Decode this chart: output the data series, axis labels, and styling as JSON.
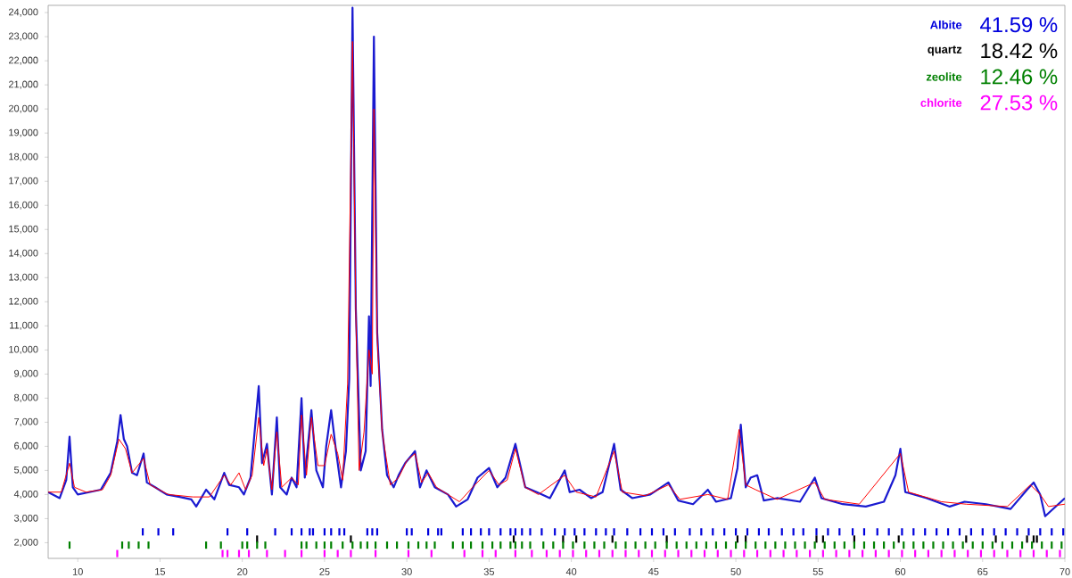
{
  "chart_data": {
    "type": "line",
    "xlim": [
      8.2,
      70
    ],
    "ylim": [
      1350,
      24300
    ],
    "xticks": [
      10,
      15,
      20,
      25,
      30,
      35,
      40,
      45,
      50,
      55,
      60,
      65,
      70
    ],
    "yticks": [
      {
        "value": 2000,
        "label": "2,000"
      },
      {
        "value": 3000,
        "label": "3,000"
      },
      {
        "value": 4000,
        "label": "4,000"
      },
      {
        "value": 5000,
        "label": "5,000"
      },
      {
        "value": 6000,
        "label": "6,000"
      },
      {
        "value": 7000,
        "label": "7,000"
      },
      {
        "value": 8000,
        "label": "8,000"
      },
      {
        "value": 9000,
        "label": "9,000"
      },
      {
        "value": 10000,
        "label": "10,000"
      },
      {
        "value": 11000,
        "label": "11,000"
      },
      {
        "value": 12000,
        "label": "12,000"
      },
      {
        "value": 13000,
        "label": "13,000"
      },
      {
        "value": 14000,
        "label": "14,000"
      },
      {
        "value": 15000,
        "label": "15,000"
      },
      {
        "value": 16000,
        "label": "16,000"
      },
      {
        "value": 17000,
        "label": "17,000"
      },
      {
        "value": 18000,
        "label": "18,000"
      },
      {
        "value": 19000,
        "label": "19,000"
      },
      {
        "value": 20000,
        "label": "20,000"
      },
      {
        "value": 21000,
        "label": "21,000"
      },
      {
        "value": 22000,
        "label": "22,000"
      },
      {
        "value": 23000,
        "label": "23,000"
      },
      {
        "value": 24000,
        "label": "24,000"
      }
    ],
    "grid": false,
    "annotations": [
      "41.59 %",
      "18.42 %",
      "12.46 %",
      "27.53 %"
    ],
    "series": [
      {
        "color": "#1a1ad0",
        "x": [
          8.2,
          8.9,
          9.3,
          9.5,
          9.7,
          10.0,
          10.7,
          11.4,
          12.0,
          12.4,
          12.6,
          12.8,
          13.0,
          13.3,
          13.6,
          14.0,
          14.2,
          14.7,
          15.4,
          16.2,
          16.9,
          17.2,
          17.8,
          18.3,
          18.9,
          19.2,
          19.8,
          20.1,
          20.5,
          21.0,
          21.2,
          21.5,
          21.8,
          22.1,
          22.3,
          22.7,
          23.0,
          23.3,
          23.6,
          23.8,
          24.2,
          24.5,
          24.9,
          25.1,
          25.4,
          25.7,
          26.0,
          26.3,
          26.5,
          26.7,
          26.9,
          27.2,
          27.5,
          27.7,
          27.8,
          28.0,
          28.2,
          28.5,
          28.8,
          29.2,
          29.5,
          29.9,
          30.5,
          30.8,
          31.2,
          31.7,
          32.5,
          33.0,
          33.7,
          34.3,
          35.0,
          35.5,
          36.0,
          36.6,
          37.2,
          37.9,
          38.7,
          39.6,
          39.9,
          40.5,
          41.2,
          41.9,
          42.6,
          43.0,
          43.7,
          44.8,
          45.9,
          46.5,
          47.4,
          48.3,
          48.8,
          49.7,
          50.1,
          50.3,
          50.6,
          50.9,
          51.3,
          51.7,
          52.5,
          53.9,
          54.8,
          55.2,
          56.5,
          57.9,
          59.0,
          59.7,
          60.0,
          60.3,
          61.6,
          63.0,
          63.9,
          65.2,
          66.7,
          67.7,
          68.1,
          68.5,
          68.8,
          69.6,
          70.0
        ],
        "values": [
          4100,
          3850,
          4600,
          6400,
          4300,
          4000,
          4100,
          4200,
          4900,
          6200,
          7300,
          6300,
          6000,
          4900,
          4800,
          5700,
          4500,
          4300,
          4000,
          3900,
          3800,
          3500,
          4200,
          3800,
          4900,
          4400,
          4300,
          4000,
          4700,
          8500,
          5300,
          6100,
          4000,
          7200,
          4300,
          4000,
          4700,
          4300,
          8000,
          4700,
          7500,
          5000,
          4300,
          6000,
          7500,
          5800,
          4300,
          5800,
          8800,
          24200,
          11700,
          5000,
          5800,
          11400,
          8500,
          23000,
          10700,
          6700,
          4800,
          4300,
          4800,
          5300,
          5800,
          4300,
          5000,
          4300,
          4000,
          3500,
          3800,
          4700,
          5100,
          4300,
          4700,
          6100,
          4300,
          4100,
          3850,
          5000,
          4100,
          4200,
          3850,
          4100,
          6100,
          4200,
          3850,
          4000,
          4500,
          3750,
          3600,
          4200,
          3700,
          3850,
          5100,
          6900,
          4300,
          4700,
          4800,
          3750,
          3850,
          3700,
          4700,
          3850,
          3600,
          3500,
          3700,
          4800,
          5900,
          4100,
          3850,
          3500,
          3700,
          3600,
          3400,
          4200,
          4500,
          4000,
          3100,
          3600,
          3850
        ]
      },
      {
        "color": "#ff0000",
        "x": [
          8.2,
          9.0,
          9.5,
          9.8,
          10.5,
          11.5,
          12.0,
          12.5,
          12.9,
          13.3,
          14.0,
          14.4,
          15.5,
          17.0,
          18.0,
          18.9,
          19.3,
          19.8,
          20.2,
          20.6,
          21.0,
          21.3,
          21.5,
          21.8,
          22.1,
          22.4,
          23.0,
          23.4,
          23.6,
          23.9,
          24.2,
          24.6,
          25.0,
          25.4,
          25.8,
          26.1,
          26.4,
          26.7,
          26.9,
          27.1,
          27.4,
          27.7,
          27.9,
          28.0,
          28.2,
          28.5,
          29.0,
          29.5,
          30.0,
          30.5,
          30.9,
          31.3,
          31.8,
          32.5,
          33.2,
          34.0,
          35.0,
          35.6,
          36.1,
          36.6,
          37.2,
          38.0,
          39.6,
          40.3,
          41.5,
          42.6,
          43.1,
          44.5,
          45.9,
          46.6,
          48.3,
          49.5,
          50.2,
          50.6,
          51.2,
          52.5,
          54.8,
          55.4,
          57.5,
          60.0,
          60.5,
          62.5,
          64.0,
          66.5,
          67.9,
          68.5,
          69.0,
          70.0
        ],
        "values": [
          4100,
          4100,
          5300,
          4300,
          4100,
          4200,
          4800,
          6300,
          5900,
          4900,
          5500,
          4400,
          4000,
          3900,
          3900,
          4800,
          4400,
          4900,
          4200,
          4800,
          7200,
          5200,
          5900,
          4200,
          6600,
          4300,
          4700,
          4400,
          7300,
          4800,
          7200,
          5200,
          5200,
          6500,
          5700,
          4600,
          8600,
          22800,
          11500,
          5000,
          6600,
          10000,
          9000,
          20000,
          10500,
          6600,
          4400,
          4700,
          5400,
          5700,
          4500,
          4900,
          4300,
          4000,
          3700,
          4300,
          5000,
          4400,
          4600,
          5900,
          4300,
          4000,
          4800,
          4100,
          3900,
          5800,
          4100,
          3950,
          4400,
          3800,
          4000,
          3800,
          6700,
          4400,
          4200,
          3800,
          4500,
          3800,
          3600,
          5700,
          4100,
          3700,
          3600,
          3500,
          4400,
          4000,
          3500,
          3600
        ]
      },
      {
        "name": "Albite",
        "type": "bar",
        "color": "#0000dd",
        "base": [
          2300,
          2300,
          2300,
          2300,
          2300,
          2300,
          2300,
          2300,
          2300,
          2300,
          2300,
          2300,
          2300,
          2300,
          2300,
          2300,
          2300,
          2300,
          2300,
          2300,
          2300,
          2300,
          2300,
          2300,
          2300,
          2300,
          2300,
          2300,
          2300,
          2300,
          2300,
          2300,
          2300,
          2300,
          2300,
          2300,
          2300,
          2300,
          2300,
          2300,
          2300,
          2300,
          2300,
          2300,
          2300,
          2300,
          2300,
          2300,
          2300,
          2300,
          2300,
          2300,
          2300,
          2300,
          2300,
          2300,
          2300,
          2300,
          2300,
          2300,
          2300,
          2300,
          2300,
          2300,
          2300,
          2300,
          2300,
          2300,
          2300,
          2300,
          2300,
          2300,
          2300,
          2300,
          2300,
          2300,
          2300
        ],
        "x": [
          13.95,
          14.9,
          15.8,
          19.1,
          20.3,
          22.0,
          23.0,
          23.6,
          24.1,
          24.3,
          25.0,
          25.4,
          25.9,
          26.2,
          27.6,
          27.9,
          28.2,
          30.0,
          30.3,
          31.3,
          31.9,
          32.1,
          33.4,
          33.9,
          34.5,
          35.0,
          35.7,
          36.3,
          36.6,
          37.0,
          37.5,
          38.2,
          39.0,
          39.6,
          40.2,
          40.8,
          41.5,
          42.1,
          42.6,
          43.4,
          44.2,
          44.9,
          45.6,
          46.3,
          47.2,
          47.9,
          48.6,
          49.3,
          50.0,
          50.7,
          51.4,
          52.0,
          52.8,
          53.5,
          54.1,
          54.9,
          55.6,
          56.3,
          57.1,
          57.8,
          58.6,
          59.3,
          60.1,
          60.8,
          61.5,
          62.2,
          62.9,
          63.6,
          64.3,
          65.0,
          65.7,
          66.4,
          67.1,
          67.8,
          68.5,
          69.2,
          69.9
        ],
        "values": [
          300,
          300,
          300,
          300,
          300,
          300,
          300,
          300,
          300,
          300,
          300,
          300,
          300,
          300,
          300,
          300,
          300,
          300,
          300,
          300,
          300,
          300,
          300,
          300,
          300,
          300,
          300,
          300,
          300,
          300,
          300,
          300,
          300,
          300,
          300,
          300,
          300,
          300,
          300,
          300,
          300,
          300,
          300,
          300,
          300,
          300,
          300,
          300,
          300,
          300,
          300,
          300,
          300,
          300,
          300,
          300,
          300,
          300,
          300,
          300,
          300,
          300,
          300,
          300,
          300,
          300,
          300,
          300,
          300,
          300,
          300,
          300,
          300,
          300,
          300,
          300,
          300
        ]
      },
      {
        "name": "quartz",
        "type": "bar",
        "color": "#000000",
        "base": [
          2000,
          2000,
          2000,
          2000,
          2000,
          2000,
          2000,
          2000,
          2000,
          2000,
          2000,
          2000,
          2000,
          2000,
          2000,
          2000,
          2000,
          2000
        ],
        "x": [
          20.9,
          26.6,
          36.5,
          39.5,
          40.3,
          42.5,
          45.8,
          50.1,
          50.6,
          54.9,
          55.3,
          57.2,
          59.9,
          64.0,
          65.8,
          67.7,
          68.1,
          68.3
        ],
        "values": [
          300,
          300,
          300,
          300,
          300,
          300,
          300,
          300,
          300,
          300,
          300,
          300,
          300,
          300,
          300,
          300,
          300,
          300
        ]
      },
      {
        "name": "zeolite",
        "type": "bar",
        "color": "#008000",
        "base": [
          1750,
          1750,
          1750,
          1750,
          1750,
          1750,
          1750,
          1750,
          1750,
          1750,
          1750,
          1750,
          1750,
          1750,
          1750,
          1750,
          1750,
          1750,
          1750,
          1750,
          1750,
          1750,
          1750,
          1750,
          1750,
          1750,
          1750,
          1750,
          1750,
          1750,
          1750,
          1750,
          1750,
          1750,
          1750,
          1750,
          1750,
          1750,
          1750,
          1750,
          1750,
          1750,
          1750,
          1750,
          1750,
          1750,
          1750,
          1750,
          1750,
          1750,
          1750,
          1750,
          1750,
          1750,
          1750,
          1750,
          1750,
          1750,
          1750,
          1750,
          1750,
          1750,
          1750,
          1750,
          1750,
          1750,
          1750,
          1750,
          1750,
          1750,
          1750,
          1750,
          1750,
          1750,
          1750,
          1750,
          1750,
          1750,
          1750,
          1750,
          1750,
          1750,
          1750,
          1750,
          1750,
          1750,
          1750,
          1750,
          1750,
          1750
        ],
        "x": [
          9.5,
          12.7,
          13.1,
          13.7,
          14.3,
          17.8,
          18.7,
          20.0,
          20.3,
          20.9,
          21.4,
          23.6,
          23.9,
          24.5,
          25.0,
          25.4,
          26.1,
          26.7,
          27.2,
          27.6,
          28.1,
          28.8,
          29.4,
          30.1,
          30.7,
          31.2,
          31.7,
          32.8,
          33.4,
          33.9,
          34.6,
          35.2,
          35.7,
          36.3,
          36.6,
          37.0,
          37.5,
          38.3,
          38.9,
          39.5,
          40.1,
          40.8,
          41.4,
          42.0,
          42.7,
          43.3,
          43.9,
          44.5,
          45.1,
          45.8,
          46.4,
          47.0,
          47.6,
          48.2,
          48.8,
          49.4,
          50.0,
          50.6,
          51.2,
          51.8,
          52.4,
          53.0,
          53.6,
          54.2,
          54.8,
          55.4,
          56.0,
          56.6,
          57.2,
          57.8,
          58.4,
          59.0,
          59.6,
          60.2,
          60.8,
          61.4,
          62.0,
          62.6,
          63.2,
          63.8,
          64.4,
          65.0,
          65.6,
          66.2,
          66.8,
          67.4,
          68.0,
          68.6,
          69.2,
          69.8
        ],
        "values": [
          300,
          300,
          300,
          300,
          300,
          300,
          300,
          300,
          300,
          300,
          300,
          300,
          300,
          300,
          300,
          300,
          300,
          300,
          300,
          300,
          300,
          300,
          300,
          300,
          300,
          300,
          300,
          300,
          300,
          300,
          300,
          300,
          300,
          300,
          300,
          300,
          300,
          300,
          300,
          300,
          300,
          300,
          300,
          300,
          300,
          300,
          300,
          300,
          300,
          300,
          300,
          300,
          300,
          300,
          300,
          300,
          300,
          300,
          300,
          300,
          300,
          300,
          300,
          300,
          300,
          300,
          300,
          300,
          300,
          300,
          300,
          300,
          300,
          300,
          300,
          300,
          300,
          300,
          300,
          300,
          300,
          300,
          300,
          300,
          300,
          300,
          300,
          300,
          300,
          300
        ]
      },
      {
        "name": "chlorite",
        "type": "bar",
        "color": "#ff00ff",
        "base": [
          1400,
          1400,
          1400,
          1400,
          1400,
          1400,
          1400,
          1400,
          1400,
          1400,
          1400,
          1400,
          1400,
          1400,
          1400,
          1400,
          1400,
          1400,
          1400,
          1400,
          1400,
          1400,
          1400,
          1400,
          1400,
          1400,
          1400,
          1400,
          1400,
          1400,
          1400,
          1400,
          1400,
          1400,
          1400,
          1400,
          1400,
          1400,
          1400,
          1400,
          1400,
          1400,
          1400,
          1400,
          1400,
          1400,
          1400,
          1400,
          1400,
          1400,
          1400,
          1400,
          1400,
          1400,
          1400,
          1400,
          1400,
          1400,
          1400
        ],
        "x": [
          12.4,
          18.8,
          19.1,
          19.8,
          20.4,
          21.5,
          22.6,
          23.6,
          25.0,
          25.8,
          26.6,
          28.1,
          30.1,
          31.5,
          33.5,
          34.6,
          35.4,
          36.6,
          37.6,
          38.5,
          39.3,
          40.1,
          40.9,
          41.7,
          42.5,
          43.3,
          44.1,
          44.9,
          45.7,
          46.5,
          47.3,
          48.1,
          48.9,
          49.7,
          50.5,
          51.3,
          52.1,
          52.9,
          53.7,
          54.5,
          55.3,
          56.1,
          56.9,
          57.7,
          58.5,
          59.3,
          60.1,
          60.9,
          61.7,
          62.5,
          63.3,
          64.1,
          64.9,
          65.7,
          66.5,
          67.3,
          68.1,
          68.9,
          69.7
        ],
        "values": [
          300,
          300,
          300,
          300,
          300,
          300,
          300,
          300,
          300,
          300,
          300,
          300,
          300,
          300,
          300,
          300,
          300,
          300,
          300,
          300,
          300,
          300,
          300,
          300,
          300,
          300,
          300,
          300,
          300,
          300,
          300,
          300,
          300,
          300,
          300,
          300,
          300,
          300,
          300,
          300,
          300,
          300,
          300,
          300,
          300,
          300,
          300,
          300,
          300,
          300,
          300,
          300,
          300,
          300,
          300,
          300,
          300,
          300,
          300
        ]
      }
    ]
  }
}
